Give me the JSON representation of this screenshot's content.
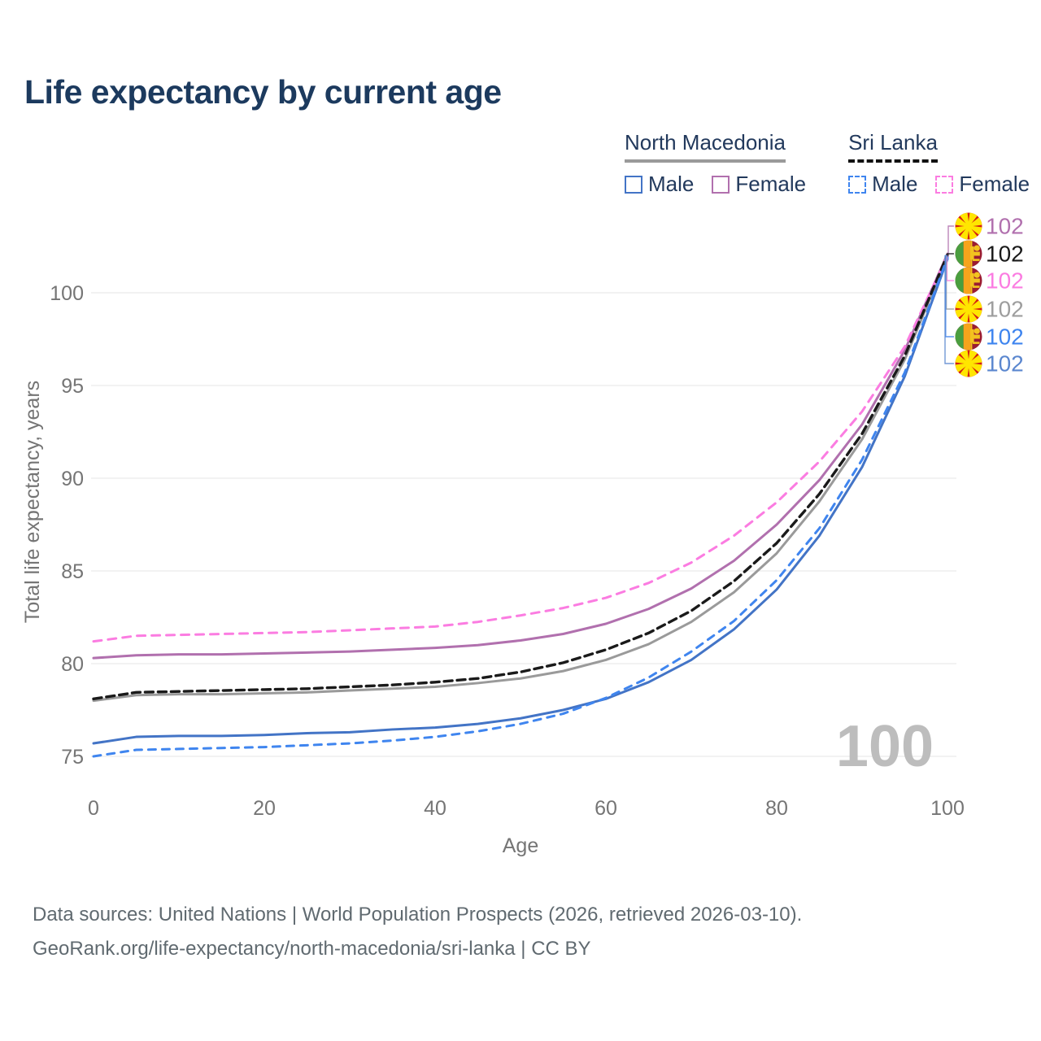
{
  "header": {
    "title": "Life expectancy by current age"
  },
  "legend": {
    "groups": [
      {
        "name": "North Macedonia",
        "line_style": "solid",
        "underline_color": "#9a9a9a",
        "items": [
          {
            "label": "Male",
            "color": "#4374c6",
            "dashed": false
          },
          {
            "label": "Female",
            "color": "#b170ae",
            "dashed": false
          }
        ]
      },
      {
        "name": "Sri Lanka",
        "line_style": "dashed",
        "underline_color": "#111111",
        "items": [
          {
            "label": "Male",
            "color": "#3f85ef",
            "dashed": true
          },
          {
            "label": "Female",
            "color": "#fb7ce1",
            "dashed": true
          }
        ]
      }
    ]
  },
  "chart_data": {
    "type": "line",
    "title": "Life expectancy by current age",
    "xlabel": "Age",
    "ylabel": "Total life expectancy, years",
    "x": [
      0,
      5,
      10,
      15,
      20,
      25,
      30,
      35,
      40,
      45,
      50,
      55,
      60,
      65,
      70,
      75,
      80,
      85,
      90,
      95,
      100
    ],
    "xticks": [
      0,
      20,
      40,
      60,
      80,
      100
    ],
    "yticks": [
      75,
      80,
      85,
      90,
      95,
      100
    ],
    "xlim": [
      0,
      100
    ],
    "ylim_view": [
      72.5,
      102.6
    ],
    "grid": "horizontal",
    "legend_position": "top-right",
    "watermark": "100",
    "series": [
      {
        "name": "North Macedonia Female",
        "country": "mk",
        "sex": "female",
        "color": "#b170ae",
        "dash": null,
        "width": 3,
        "values": [
          80.3,
          80.45,
          80.5,
          80.5,
          80.55,
          80.6,
          80.65,
          80.75,
          80.85,
          81.0,
          81.25,
          81.6,
          82.15,
          82.95,
          84.05,
          85.55,
          87.5,
          89.9,
          92.9,
          96.9,
          102.1
        ]
      },
      {
        "name": "Sri Lanka Female",
        "country": "lk",
        "sex": "female",
        "color": "#fb7ce1",
        "dash": "10 8",
        "width": 3,
        "values": [
          81.2,
          81.5,
          81.55,
          81.6,
          81.65,
          81.7,
          81.8,
          81.9,
          82.0,
          82.25,
          82.6,
          83.0,
          83.55,
          84.35,
          85.45,
          86.9,
          88.7,
          90.9,
          93.6,
          97.1,
          102.0
        ]
      },
      {
        "name": "Sri Lanka Both sexes",
        "country": "lk",
        "sex": "both",
        "color": "#1a1a1a",
        "dash": "10 6",
        "width": 3.4,
        "values": [
          78.1,
          78.45,
          78.5,
          78.55,
          78.6,
          78.65,
          78.75,
          78.85,
          79.0,
          79.2,
          79.55,
          80.05,
          80.75,
          81.65,
          82.85,
          84.45,
          86.5,
          89.15,
          92.4,
          96.6,
          102.05
        ]
      },
      {
        "name": "North Macedonia Both sexes",
        "country": "mk",
        "sex": "both",
        "color": "#9a9a9a",
        "dash": null,
        "width": 3,
        "values": [
          78.0,
          78.3,
          78.35,
          78.35,
          78.4,
          78.45,
          78.55,
          78.65,
          78.75,
          78.95,
          79.2,
          79.6,
          80.2,
          81.05,
          82.25,
          83.85,
          85.95,
          88.75,
          92.1,
          96.4,
          101.95
        ]
      },
      {
        "name": "North Macedonia Male",
        "country": "mk",
        "sex": "male",
        "color": "#4374c6",
        "dash": null,
        "width": 3,
        "values": [
          75.7,
          76.05,
          76.1,
          76.1,
          76.15,
          76.25,
          76.3,
          76.45,
          76.55,
          76.75,
          77.05,
          77.5,
          78.1,
          79.0,
          80.2,
          81.85,
          84.0,
          86.9,
          90.6,
          95.5,
          101.82
        ]
      },
      {
        "name": "Sri Lanka Male",
        "country": "lk",
        "sex": "male",
        "color": "#3f85ef",
        "dash": "9 8",
        "width": 3,
        "values": [
          75.0,
          75.35,
          75.4,
          75.45,
          75.5,
          75.6,
          75.7,
          75.85,
          76.05,
          76.35,
          76.75,
          77.3,
          78.15,
          79.25,
          80.65,
          82.3,
          84.5,
          87.3,
          91.0,
          95.7,
          101.9
        ]
      }
    ],
    "end_labels": [
      {
        "text": "102",
        "flag": "mk",
        "color": "#b170ae"
      },
      {
        "text": "102",
        "flag": "lk",
        "color": "#1a1a1a"
      },
      {
        "text": "102",
        "flag": "lk",
        "color": "#fb7ce1"
      },
      {
        "text": "102",
        "flag": "mk",
        "color": "#9e9e9e"
      },
      {
        "text": "102",
        "flag": "lk",
        "color": "#3f85ef"
      },
      {
        "text": "102",
        "flag": "mk",
        "color": "#5b87cf"
      }
    ]
  },
  "footer": {
    "line1": "Data sources: United Nations | World Population Prospects (2026, retrieved 2026-03-10).",
    "line2": "GeoRank.org/life-expectancy/north-macedonia/sri-lanka | CC BY"
  }
}
